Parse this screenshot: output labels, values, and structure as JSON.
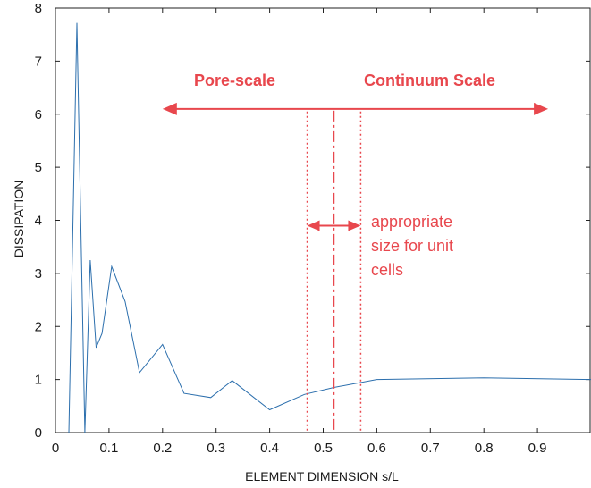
{
  "chart_data": {
    "type": "line",
    "title": "",
    "xlabel": "ELEMENT DIMENSION s/L",
    "ylabel": "DISSIPATION",
    "xlim": [
      0,
      1
    ],
    "ylim": [
      0,
      8
    ],
    "x_ticks": [
      0,
      0.1,
      0.2,
      0.3,
      0.4,
      0.5,
      0.6,
      0.7,
      0.8,
      0.9
    ],
    "x_tick_labels": [
      "0",
      "0.1",
      "0.2",
      "0.3",
      "0.4",
      "0.5",
      "0.6",
      "0.7",
      "0.8",
      "0.9"
    ],
    "y_ticks": [
      0,
      1,
      2,
      3,
      4,
      5,
      6,
      7,
      8
    ],
    "y_tick_labels": [
      "0",
      "1",
      "2",
      "3",
      "4",
      "5",
      "6",
      "7",
      "8"
    ],
    "grid": false,
    "series": [
      {
        "color": "#2c6fad",
        "x": [
          0.025,
          0.04,
          0.055,
          0.065,
          0.076,
          0.087,
          0.105,
          0.13,
          0.157,
          0.2,
          0.24,
          0.29,
          0.33,
          0.4,
          0.465,
          0.52,
          0.6,
          0.8,
          1.0
        ],
        "y": [
          0.0,
          7.72,
          0.0,
          3.25,
          1.6,
          1.87,
          3.13,
          2.47,
          1.13,
          1.66,
          0.74,
          0.66,
          0.98,
          0.43,
          0.72,
          0.85,
          1.0,
          1.03,
          1.0
        ]
      }
    ],
    "annotations": {
      "color": "#e8474d",
      "pore_scale_label": "Pore-scale",
      "continuum_label": "Continuum Scale",
      "scale_arrow": {
        "x_start": 0.2,
        "x_end": 0.92,
        "y": 6.1
      },
      "dotted_lines_x": [
        0.47,
        0.57
      ],
      "dashdot_line_x": 0.52,
      "vertical_lines_top_y": 6.05,
      "unit_cell_arrow": {
        "x_start": 0.47,
        "x_end": 0.57,
        "y": 3.9
      },
      "unit_cell_label_lines": [
        "appropriate",
        "size for  unit",
        "cells"
      ]
    }
  }
}
